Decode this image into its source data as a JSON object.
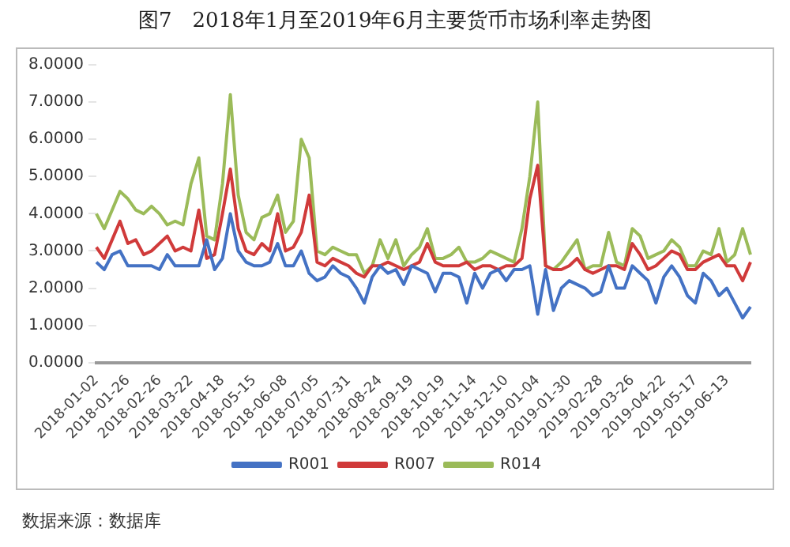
{
  "chart_data": {
    "type": "line",
    "title": "图7　2018年1月至2019年6月主要货币市场利率走势图",
    "categories": [
      "2018-01-02",
      null,
      null,
      null,
      "2018-01-26",
      null,
      null,
      null,
      "2018-02-26",
      null,
      null,
      null,
      "2018-03-22",
      null,
      null,
      null,
      "2018-04-18",
      null,
      null,
      null,
      "2018-05-15",
      null,
      null,
      null,
      "2018-06-08",
      null,
      null,
      null,
      "2018-07-05",
      null,
      null,
      null,
      "2018-07-31",
      null,
      null,
      null,
      "2018-08-24",
      null,
      null,
      null,
      "2018-09-19",
      null,
      null,
      null,
      "2018-10-19",
      null,
      null,
      null,
      "2018-11-14",
      null,
      null,
      null,
      "2018-12-10",
      null,
      null,
      null,
      "2019-01-04",
      null,
      null,
      null,
      "2019-01-30",
      null,
      null,
      null,
      "2019-02-28",
      null,
      null,
      null,
      "2019-03-26",
      null,
      null,
      null,
      "2019-04-22",
      null,
      null,
      null,
      "2019-05-17",
      null,
      null,
      null,
      "2019-06-13",
      null,
      null,
      null
    ],
    "series": [
      {
        "name": "R001",
        "color": "#4472c4",
        "values": [
          2.7,
          2.5,
          2.9,
          3.0,
          2.6,
          2.6,
          2.6,
          2.6,
          2.5,
          2.9,
          2.6,
          2.6,
          2.6,
          2.6,
          3.3,
          2.5,
          2.8,
          4.0,
          3.0,
          2.7,
          2.6,
          2.6,
          2.7,
          3.2,
          2.6,
          2.6,
          3.0,
          2.4,
          2.2,
          2.3,
          2.6,
          2.4,
          2.3,
          2.0,
          1.6,
          2.3,
          2.6,
          2.4,
          2.5,
          2.1,
          2.6,
          2.5,
          2.4,
          1.9,
          2.4,
          2.4,
          2.3,
          1.6,
          2.4,
          2.0,
          2.4,
          2.5,
          2.2,
          2.5,
          2.5,
          2.6,
          1.3,
          2.5,
          1.4,
          2.0,
          2.2,
          2.1,
          2.0,
          1.8,
          1.9,
          2.6,
          2.0,
          2.0,
          2.6,
          2.4,
          2.2,
          1.6,
          2.3,
          2.6,
          2.3,
          1.8,
          1.6,
          2.4,
          2.2,
          1.8,
          2.0,
          1.6,
          1.2,
          1.5
        ]
      },
      {
        "name": "R007",
        "color": "#d03a3a",
        "values": [
          3.1,
          2.8,
          3.3,
          3.8,
          3.2,
          3.3,
          2.9,
          3.0,
          3.2,
          3.4,
          3.0,
          3.1,
          3.0,
          4.1,
          2.8,
          2.9,
          4.0,
          5.2,
          3.6,
          3.0,
          2.9,
          3.2,
          3.0,
          4.0,
          3.0,
          3.1,
          3.5,
          4.5,
          2.7,
          2.6,
          2.8,
          2.7,
          2.6,
          2.4,
          2.3,
          2.6,
          2.6,
          2.7,
          2.6,
          2.5,
          2.6,
          2.7,
          3.2,
          2.7,
          2.6,
          2.6,
          2.6,
          2.7,
          2.5,
          2.6,
          2.6,
          2.5,
          2.6,
          2.6,
          2.8,
          4.4,
          5.3,
          2.6,
          2.5,
          2.5,
          2.6,
          2.8,
          2.5,
          2.4,
          2.5,
          2.6,
          2.6,
          2.5,
          3.2,
          2.9,
          2.5,
          2.6,
          2.8,
          3.0,
          2.9,
          2.5,
          2.5,
          2.7,
          2.8,
          2.9,
          2.6,
          2.6,
          2.2,
          2.7
        ]
      },
      {
        "name": "R014",
        "color": "#9bbb59",
        "values": [
          4.0,
          3.6,
          4.1,
          4.6,
          4.4,
          4.1,
          4.0,
          4.2,
          4.0,
          3.7,
          3.8,
          3.7,
          4.8,
          5.5,
          3.4,
          3.3,
          4.8,
          7.2,
          4.5,
          3.5,
          3.3,
          3.9,
          4.0,
          4.5,
          3.5,
          3.8,
          6.0,
          5.5,
          3.0,
          2.9,
          3.1,
          3.0,
          2.9,
          2.9,
          2.4,
          2.6,
          3.3,
          2.8,
          3.3,
          2.6,
          2.9,
          3.1,
          3.6,
          2.8,
          2.8,
          2.9,
          3.1,
          2.7,
          2.7,
          2.8,
          3.0,
          2.9,
          2.8,
          2.7,
          3.6,
          5.0,
          7.0,
          2.6,
          2.5,
          2.7,
          3.0,
          3.3,
          2.5,
          2.6,
          2.6,
          3.5,
          2.7,
          2.6,
          3.6,
          3.4,
          2.8,
          2.9,
          3.0,
          3.3,
          3.1,
          2.6,
          2.6,
          3.0,
          2.9,
          3.6,
          2.7,
          2.9,
          3.6,
          2.9
        ]
      }
    ],
    "ylim": [
      0,
      8
    ],
    "yticks": [
      {
        "value": 0,
        "label": "0.0000"
      },
      {
        "value": 1,
        "label": "1.0000"
      },
      {
        "value": 2,
        "label": "2.0000"
      },
      {
        "value": 3,
        "label": "3.0000"
      },
      {
        "value": 4,
        "label": "4.0000"
      },
      {
        "value": 5,
        "label": "5.0000"
      },
      {
        "value": 6,
        "label": "6.0000"
      },
      {
        "value": 7,
        "label": "7.0000"
      },
      {
        "value": 8,
        "label": "8.0000"
      }
    ],
    "grid": false,
    "legend": "bottom",
    "marker": "none",
    "line_style": "solid",
    "annotations": [
      "数据来源：数据库"
    ]
  }
}
